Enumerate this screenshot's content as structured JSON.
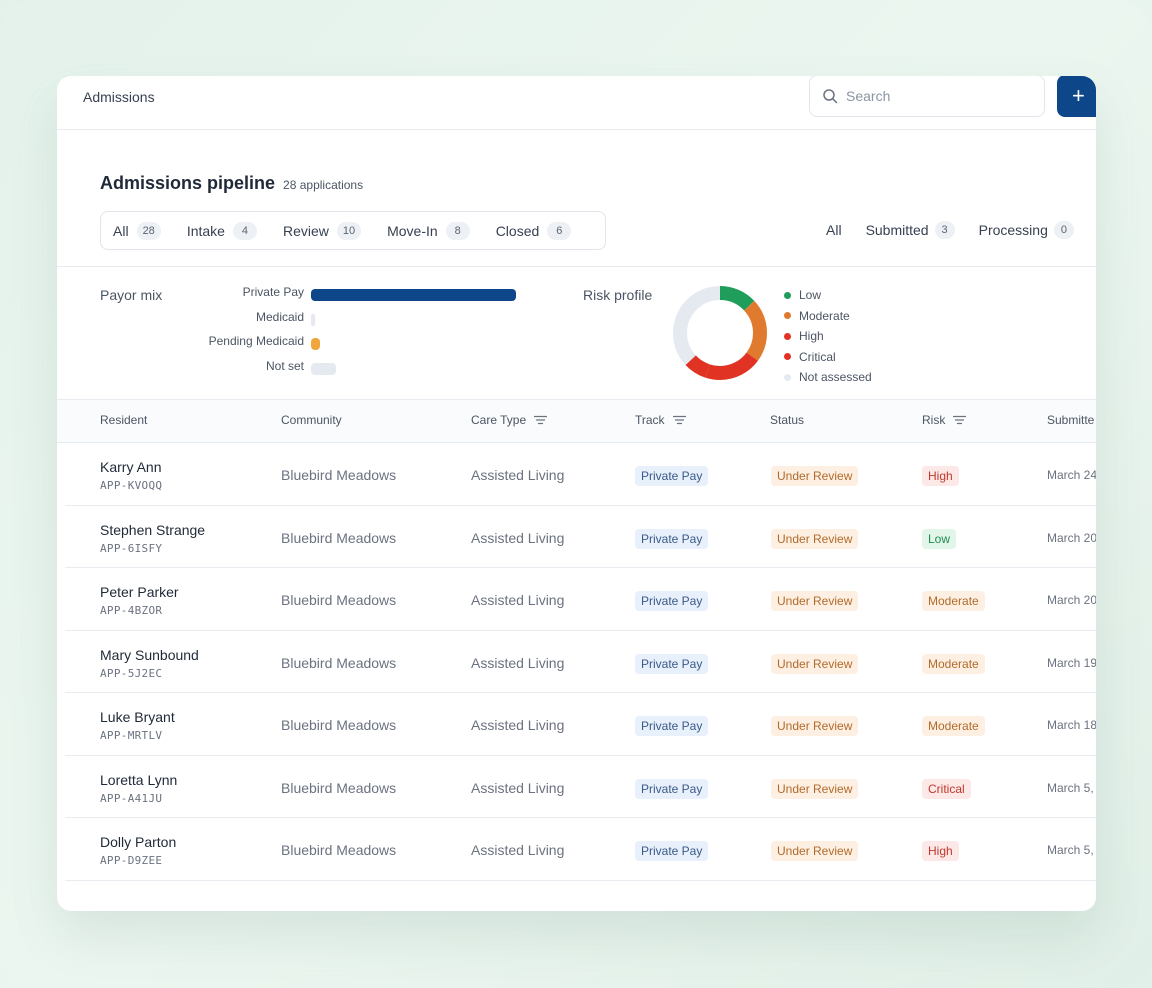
{
  "header": {
    "breadcrumb": "Admissions",
    "search_placeholder": "Search",
    "add_label": "+"
  },
  "pipeline": {
    "title": "Admissions pipeline",
    "count_label": "28 applications",
    "stage_tabs": [
      {
        "label": "All",
        "count": "28"
      },
      {
        "label": "Intake",
        "count": "4"
      },
      {
        "label": "Review",
        "count": "10"
      },
      {
        "label": "Move-In",
        "count": "8"
      },
      {
        "label": "Closed",
        "count": "6"
      }
    ],
    "status_filters": [
      {
        "label": "All",
        "count": null
      },
      {
        "label": "Submitted",
        "count": "3"
      },
      {
        "label": "Processing",
        "count": "0"
      }
    ]
  },
  "payor_mix": {
    "label": "Payor mix",
    "items": [
      {
        "name": "Private Pay",
        "value": 1.0,
        "color": "#0d4689"
      },
      {
        "name": "Medicaid",
        "value": 0.0,
        "color": "#e5e9f0"
      },
      {
        "name": "Pending Medicaid",
        "value": 0.045,
        "color": "#f0a63a"
      },
      {
        "name": "Not set",
        "value": 0.12,
        "color": "#e5e9f0"
      }
    ]
  },
  "risk_profile": {
    "label": "Risk profile",
    "items": [
      {
        "name": "Low",
        "share": 0.13,
        "color": "#1f9d5a"
      },
      {
        "name": "Moderate",
        "share": 0.22,
        "color": "#e07a2e"
      },
      {
        "name": "High",
        "share": 0.2,
        "color": "#e03324"
      },
      {
        "name": "Critical",
        "share": 0.08,
        "color": "#e03324"
      },
      {
        "name": "Not assessed",
        "share": 0.37,
        "color": "#e5e9f0"
      }
    ]
  },
  "table": {
    "columns": [
      "Resident",
      "Community",
      "Care Type",
      "Track",
      "Status",
      "Risk",
      "Submitte"
    ],
    "rows": [
      {
        "name": "Karry Ann",
        "id": "APP-KVOQQ",
        "community": "Bluebird Meadows",
        "care": "Assisted Living",
        "track": "Private Pay",
        "status": "Under Review",
        "risk": "High",
        "date": "March 24"
      },
      {
        "name": "Stephen Strange",
        "id": "APP-6ISFY",
        "community": "Bluebird Meadows",
        "care": "Assisted Living",
        "track": "Private Pay",
        "status": "Under Review",
        "risk": "Low",
        "date": "March 20"
      },
      {
        "name": "Peter Parker",
        "id": "APP-4BZOR",
        "community": "Bluebird Meadows",
        "care": "Assisted Living",
        "track": "Private Pay",
        "status": "Under Review",
        "risk": "Moderate",
        "date": "March 20"
      },
      {
        "name": "Mary Sunbound",
        "id": "APP-5J2EC",
        "community": "Bluebird Meadows",
        "care": "Assisted Living",
        "track": "Private Pay",
        "status": "Under Review",
        "risk": "Moderate",
        "date": "March 19"
      },
      {
        "name": "Luke Bryant",
        "id": "APP-MRTLV",
        "community": "Bluebird Meadows",
        "care": "Assisted Living",
        "track": "Private Pay",
        "status": "Under Review",
        "risk": "Moderate",
        "date": "March 18"
      },
      {
        "name": "Loretta Lynn",
        "id": "APP-A41JU",
        "community": "Bluebird Meadows",
        "care": "Assisted Living",
        "track": "Private Pay",
        "status": "Under Review",
        "risk": "Critical",
        "date": "March 5,"
      },
      {
        "name": "Dolly Parton",
        "id": "APP-D9ZEE",
        "community": "Bluebird Meadows",
        "care": "Assisted Living",
        "track": "Private Pay",
        "status": "Under Review",
        "risk": "High",
        "date": "March 5,"
      }
    ]
  }
}
